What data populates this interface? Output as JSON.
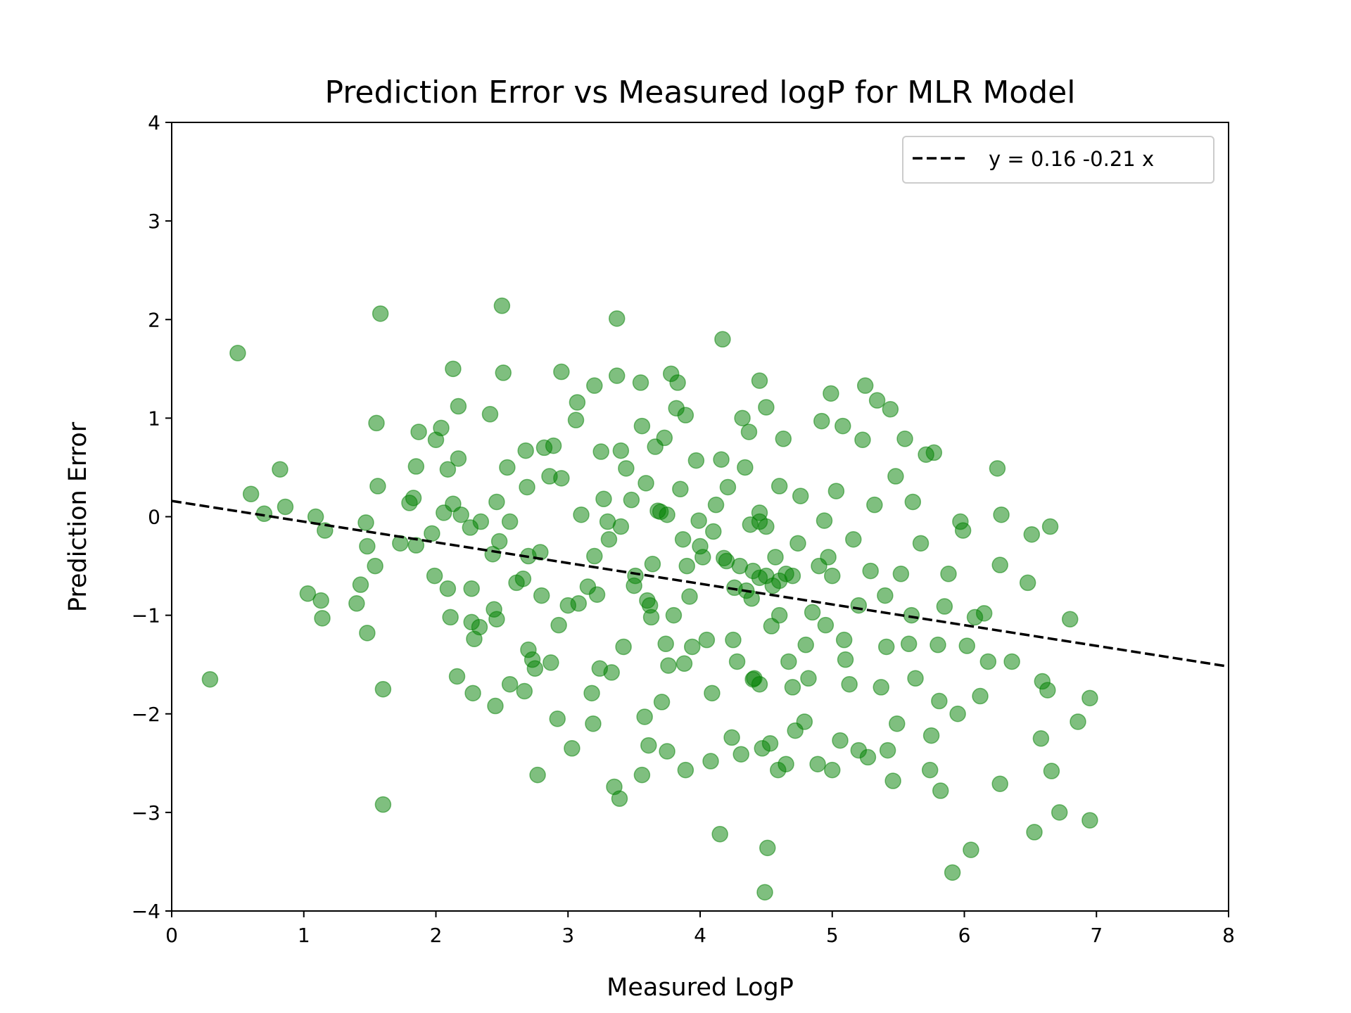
{
  "chart_data": {
    "type": "scatter",
    "title": "Prediction Error vs Measured logP for MLR Model",
    "x_label": "Measured LogP",
    "y_label": "Prediction Error",
    "xlim": [
      0,
      8
    ],
    "ylim": [
      -4,
      4
    ],
    "xticks": [
      0,
      1,
      2,
      3,
      4,
      5,
      6,
      7,
      8
    ],
    "yticks": [
      {
        "value": -4,
        "label": "−4"
      },
      {
        "value": -3,
        "label": "−3"
      },
      {
        "value": -2,
        "label": "−2"
      },
      {
        "value": -1,
        "label": "−1"
      },
      0,
      1,
      2,
      3,
      4
    ],
    "legend": "upper right",
    "points": {
      "color": "#008000",
      "alpha": 0.5,
      "x": [
        0.5,
        0.29,
        0.6,
        0.7,
        0.82,
        0.86,
        1.03,
        1.09,
        1.13,
        1.14,
        1.16,
        1.4,
        1.43,
        1.47,
        1.48,
        1.48,
        1.54,
        1.55,
        1.56,
        1.58,
        1.6,
        1.6,
        1.73,
        1.8,
        1.83,
        1.85,
        1.85,
        1.87,
        1.97,
        1.99,
        2.0,
        2.04,
        2.06,
        2.09,
        2.11,
        2.13,
        2.13,
        2.09,
        2.16,
        2.17,
        2.17,
        2.19,
        2.26,
        2.27,
        2.27,
        2.28,
        2.29,
        2.33,
        2.34,
        2.41,
        2.43,
        2.44,
        2.45,
        2.46,
        2.46,
        2.48,
        2.5,
        2.51,
        2.54,
        2.56,
        2.56,
        2.61,
        2.66,
        2.67,
        2.68,
        2.69,
        2.7,
        2.73,
        2.75,
        2.77,
        2.79,
        2.82,
        2.86,
        2.87,
        2.89,
        2.92,
        2.93,
        2.95,
        2.95,
        3.03,
        3.07,
        3.06,
        3.08,
        3.1,
        3.15,
        3.18,
        3.19,
        3.2,
        3.22,
        3.24,
        3.25,
        3.27,
        3.31,
        3.33,
        3.35,
        3.37,
        3.37,
        3.39,
        3.4,
        3.42,
        3.44,
        3.48,
        3.51,
        3.55,
        3.56,
        3.56,
        3.58,
        3.59,
        3.61,
        3.63,
        3.64,
        3.66,
        3.68,
        3.71,
        3.73,
        3.74,
        3.75,
        3.76,
        3.78,
        3.82,
        3.83,
        3.85,
        3.87,
        3.88,
        3.89,
        3.89,
        3.92,
        3.94,
        3.97,
        3.99,
        4.02,
        4.05,
        4.08,
        4.09,
        4.12,
        4.15,
        4.16,
        4.17,
        4.18,
        4.21,
        4.24,
        4.26,
        4.28,
        4.31,
        4.32,
        4.34,
        4.37,
        4.38,
        4.39,
        4.41,
        4.45,
        4.45,
        4.47,
        4.49,
        4.5,
        4.51,
        4.53,
        4.54,
        4.57,
        4.59,
        4.6,
        4.63,
        4.65,
        4.67,
        4.7,
        4.72,
        4.74,
        4.76,
        4.79,
        4.82,
        4.85,
        4.89,
        4.92,
        4.94,
        4.97,
        4.99,
        5.0,
        5.03,
        5.06,
        5.08,
        5.09,
        5.13,
        5.16,
        5.2,
        5.23,
        5.25,
        5.27,
        5.29,
        5.32,
        5.34,
        5.37,
        5.41,
        5.42,
        5.44,
        5.46,
        5.48,
        5.49,
        5.52,
        5.55,
        5.58,
        5.61,
        5.63,
        5.67,
        5.71,
        5.74,
        5.75,
        5.77,
        5.81,
        5.82,
        5.85,
        5.88,
        5.91,
        5.95,
        5.97,
        5.99,
        6.02,
        6.05,
        6.08,
        6.12,
        6.15,
        6.18,
        6.25,
        6.27,
        6.28,
        6.27,
        6.36,
        6.48,
        6.51,
        6.53,
        6.58,
        6.59,
        6.63,
        6.65,
        6.66,
        6.72,
        6.8,
        6.86,
        6.95,
        6.95,
        4.4,
        4.5,
        4.6,
        4.3,
        4.55,
        4.7,
        4.2,
        4.45,
        4.65,
        4.35,
        3.7,
        3.75,
        3.6,
        3.62,
        4.45,
        4.5,
        4.4,
        4.45,
        4.9,
        5.0,
        3.4,
        3.3,
        4.0,
        4.1,
        3.9,
        5.2,
        5.4,
        3.5,
        4.8,
        4.25,
        3.2,
        3.0,
        5.6,
        5.8,
        2.8,
        2.7,
        3.8,
        4.6,
        5.1,
        4.95
      ],
      "y": [
        1.66,
        -1.65,
        0.23,
        0.03,
        0.48,
        0.1,
        -0.78,
        0.0,
        -0.85,
        -1.03,
        -0.14,
        -0.88,
        -0.69,
        -0.06,
        -0.3,
        -1.18,
        -0.5,
        0.95,
        0.31,
        2.06,
        -1.75,
        -2.92,
        -0.27,
        0.14,
        0.19,
        -0.29,
        0.51,
        0.86,
        -0.17,
        -0.6,
        0.78,
        0.9,
        0.04,
        -0.73,
        -1.02,
        1.5,
        0.13,
        0.48,
        -1.62,
        1.12,
        0.59,
        0.02,
        -0.11,
        -0.73,
        -1.07,
        -1.79,
        -1.24,
        -1.12,
        -0.05,
        1.04,
        -0.38,
        -0.94,
        -1.92,
        -1.04,
        0.15,
        -0.25,
        2.14,
        1.46,
        0.5,
        -1.7,
        -0.05,
        -0.67,
        -0.63,
        -1.77,
        0.67,
        0.3,
        -1.35,
        -1.45,
        -1.54,
        -2.62,
        -0.36,
        0.7,
        0.41,
        -1.48,
        0.72,
        -2.05,
        -1.1,
        1.47,
        0.39,
        -2.35,
        1.16,
        0.98,
        -0.88,
        0.02,
        -0.71,
        -1.79,
        -2.1,
        1.33,
        -0.79,
        -1.54,
        0.66,
        0.18,
        -0.23,
        -1.58,
        -2.74,
        1.43,
        2.01,
        -2.86,
        0.67,
        -1.32,
        0.49,
        0.17,
        -0.6,
        1.36,
        0.92,
        -2.62,
        -2.03,
        0.34,
        -2.32,
        -1.02,
        -0.48,
        0.71,
        0.06,
        -1.88,
        0.8,
        -1.29,
        -2.38,
        -1.51,
        1.45,
        1.1,
        1.36,
        0.28,
        -0.23,
        -1.49,
        1.03,
        -2.57,
        -0.81,
        -1.32,
        0.57,
        -0.04,
        -0.41,
        -1.25,
        -2.48,
        -1.79,
        0.12,
        -3.22,
        0.58,
        1.8,
        -0.42,
        0.3,
        -2.24,
        -0.72,
        -1.47,
        -2.41,
        1.0,
        0.5,
        0.86,
        -0.08,
        -0.83,
        -1.64,
        1.38,
        0.04,
        -2.35,
        -3.81,
        1.11,
        -3.36,
        -2.3,
        -1.11,
        -0.41,
        -2.57,
        0.31,
        0.79,
        -2.51,
        -1.47,
        -1.73,
        -2.17,
        -0.27,
        0.21,
        -2.08,
        -1.64,
        -0.97,
        -2.51,
        0.97,
        -0.04,
        -0.41,
        1.25,
        -2.57,
        0.26,
        -2.27,
        0.92,
        -1.25,
        -1.7,
        -0.23,
        -2.37,
        0.78,
        1.33,
        -2.44,
        -0.55,
        0.12,
        1.18,
        -1.73,
        -1.32,
        -2.37,
        1.09,
        -2.68,
        0.41,
        -2.1,
        -0.58,
        0.79,
        -1.29,
        0.15,
        -1.64,
        -0.27,
        0.63,
        -2.57,
        -2.22,
        0.65,
        -1.87,
        -2.78,
        -0.91,
        -0.58,
        -3.61,
        -2.0,
        -0.05,
        -0.14,
        -1.31,
        -3.38,
        -1.02,
        -1.82,
        -0.98,
        -1.47,
        0.49,
        -2.71,
        0.02,
        -0.49,
        -1.47,
        -0.67,
        -0.18,
        -3.2,
        -2.25,
        -1.67,
        -1.76,
        -0.1,
        -2.58,
        -3.0,
        -1.04,
        -2.08,
        -1.84,
        -3.08,
        -0.55,
        -0.6,
        -0.65,
        -0.5,
        -0.7,
        -0.6,
        -0.45,
        -0.62,
        -0.58,
        -0.75,
        0.05,
        0.02,
        -0.85,
        -0.9,
        -0.05,
        -0.1,
        -1.65,
        -1.7,
        -0.5,
        -0.6,
        -0.1,
        -0.05,
        -0.3,
        -0.15,
        -0.5,
        -0.9,
        -0.8,
        -0.7,
        -1.3,
        -1.25,
        -0.4,
        -0.9,
        -1.0,
        -1.3,
        -0.8,
        -0.4,
        -1.0,
        -1.0,
        -1.45,
        -1.1
      ]
    },
    "fit_line": {
      "name": "y = 0.16 -0.21 x",
      "color": "#000000",
      "style": "dashed",
      "x": [
        0,
        8
      ],
      "y": [
        0.16,
        -1.52
      ]
    }
  }
}
